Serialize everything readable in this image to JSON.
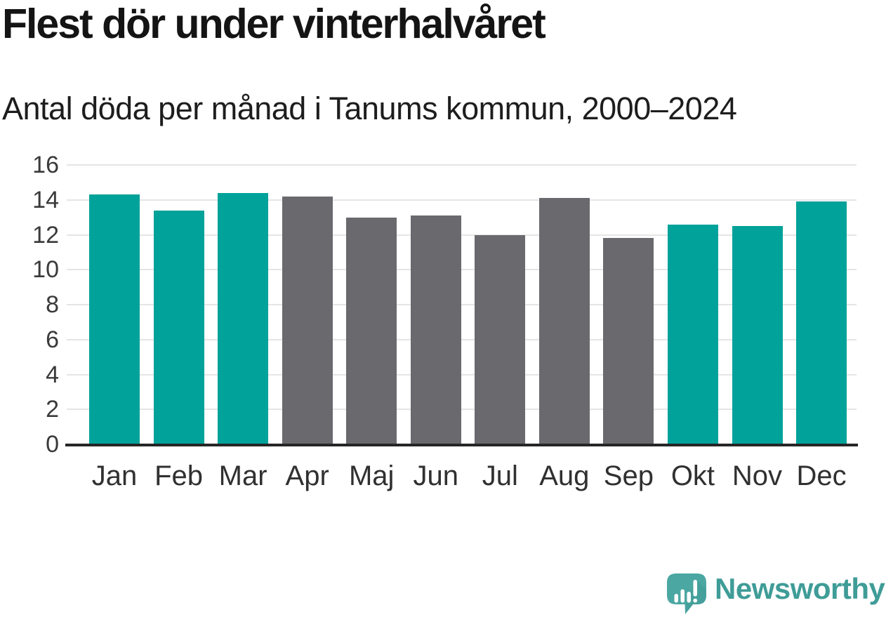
{
  "header": {
    "title": "Flest dör under vinterhalvåret",
    "subtitle": "Antal döda per månad i Tanums kommun, 2000–2024"
  },
  "chart_data": {
    "type": "bar",
    "title": "Flest dör under vinterhalvåret",
    "subtitle": "Antal döda per månad i Tanums kommun, 2000–2024",
    "categories": [
      "Jan",
      "Feb",
      "Mar",
      "Apr",
      "Maj",
      "Jun",
      "Jul",
      "Aug",
      "Sep",
      "Okt",
      "Nov",
      "Dec"
    ],
    "values": [
      14.3,
      13.4,
      14.4,
      14.2,
      13.0,
      13.1,
      12.0,
      14.1,
      11.8,
      12.6,
      12.5,
      13.9
    ],
    "winter_highlight": [
      true,
      true,
      true,
      false,
      false,
      false,
      false,
      false,
      false,
      true,
      true,
      true
    ],
    "xlabel": "",
    "ylabel": "",
    "ylim": [
      0,
      16
    ],
    "yticks": [
      0,
      2,
      4,
      6,
      8,
      10,
      12,
      14,
      16
    ],
    "grid": "horizontal",
    "legend": "none",
    "colors": {
      "winter_bar": "#00A29A",
      "summer_bar": "#69696E",
      "gridline": "#e5e5e7",
      "axis": "#262626"
    }
  },
  "footer": {
    "brand": "Newsworthy",
    "brand_color": "#3f9c97",
    "logo_bubble_color": "#4BA7A2",
    "logo_shadow_color": "#45A09B"
  }
}
